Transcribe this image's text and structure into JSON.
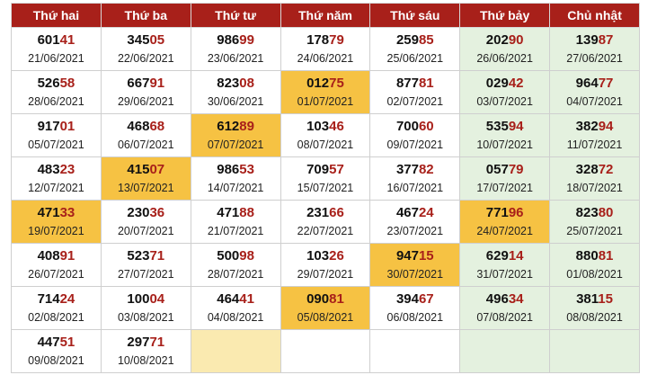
{
  "colors": {
    "header_bg": "#a8201a",
    "header_text": "#ffffff",
    "tail_digits": "#a8201a",
    "highlight": "#f6c243",
    "weekend": "#e4f1df",
    "empty_highlight": "#faeab0"
  },
  "headers": [
    "Thứ hai",
    "Thứ ba",
    "Thứ tư",
    "Thứ năm",
    "Thứ sáu",
    "Thứ bảy",
    "Chủ nhật"
  ],
  "rows": [
    [
      {
        "head": "601",
        "tail": "41",
        "date": "21/06/2021",
        "highlight": false
      },
      {
        "head": "345",
        "tail": "05",
        "date": "22/06/2021",
        "highlight": false
      },
      {
        "head": "986",
        "tail": "99",
        "date": "23/06/2021",
        "highlight": false
      },
      {
        "head": "178",
        "tail": "79",
        "date": "24/06/2021",
        "highlight": false
      },
      {
        "head": "259",
        "tail": "85",
        "date": "25/06/2021",
        "highlight": false
      },
      {
        "head": "202",
        "tail": "90",
        "date": "26/06/2021",
        "highlight": false
      },
      {
        "head": "139",
        "tail": "87",
        "date": "27/06/2021",
        "highlight": false
      }
    ],
    [
      {
        "head": "526",
        "tail": "58",
        "date": "28/06/2021",
        "highlight": false
      },
      {
        "head": "667",
        "tail": "91",
        "date": "29/06/2021",
        "highlight": false
      },
      {
        "head": "823",
        "tail": "08",
        "date": "30/06/2021",
        "highlight": false
      },
      {
        "head": "012",
        "tail": "75",
        "date": "01/07/2021",
        "highlight": true
      },
      {
        "head": "877",
        "tail": "81",
        "date": "02/07/2021",
        "highlight": false
      },
      {
        "head": "029",
        "tail": "42",
        "date": "03/07/2021",
        "highlight": false
      },
      {
        "head": "964",
        "tail": "77",
        "date": "04/07/2021",
        "highlight": false
      }
    ],
    [
      {
        "head": "917",
        "tail": "01",
        "date": "05/07/2021",
        "highlight": false
      },
      {
        "head": "468",
        "tail": "68",
        "date": "06/07/2021",
        "highlight": false
      },
      {
        "head": "612",
        "tail": "89",
        "date": "07/07/2021",
        "highlight": true
      },
      {
        "head": "103",
        "tail": "46",
        "date": "08/07/2021",
        "highlight": false
      },
      {
        "head": "700",
        "tail": "60",
        "date": "09/07/2021",
        "highlight": false
      },
      {
        "head": "535",
        "tail": "94",
        "date": "10/07/2021",
        "highlight": false
      },
      {
        "head": "382",
        "tail": "94",
        "date": "11/07/2021",
        "highlight": false
      }
    ],
    [
      {
        "head": "483",
        "tail": "23",
        "date": "12/07/2021",
        "highlight": false
      },
      {
        "head": "415",
        "tail": "07",
        "date": "13/07/2021",
        "highlight": true
      },
      {
        "head": "986",
        "tail": "53",
        "date": "14/07/2021",
        "highlight": false
      },
      {
        "head": "709",
        "tail": "57",
        "date": "15/07/2021",
        "highlight": false
      },
      {
        "head": "377",
        "tail": "82",
        "date": "16/07/2021",
        "highlight": false
      },
      {
        "head": "057",
        "tail": "79",
        "date": "17/07/2021",
        "highlight": false
      },
      {
        "head": "328",
        "tail": "72",
        "date": "18/07/2021",
        "highlight": false
      }
    ],
    [
      {
        "head": "471",
        "tail": "33",
        "date": "19/07/2021",
        "highlight": true
      },
      {
        "head": "230",
        "tail": "36",
        "date": "20/07/2021",
        "highlight": false
      },
      {
        "head": "471",
        "tail": "88",
        "date": "21/07/2021",
        "highlight": false
      },
      {
        "head": "231",
        "tail": "66",
        "date": "22/07/2021",
        "highlight": false
      },
      {
        "head": "467",
        "tail": "24",
        "date": "23/07/2021",
        "highlight": false
      },
      {
        "head": "771",
        "tail": "96",
        "date": "24/07/2021",
        "highlight": true
      },
      {
        "head": "823",
        "tail": "80",
        "date": "25/07/2021",
        "highlight": false
      }
    ],
    [
      {
        "head": "408",
        "tail": "91",
        "date": "26/07/2021",
        "highlight": false
      },
      {
        "head": "523",
        "tail": "71",
        "date": "27/07/2021",
        "highlight": false
      },
      {
        "head": "500",
        "tail": "98",
        "date": "28/07/2021",
        "highlight": false
      },
      {
        "head": "103",
        "tail": "26",
        "date": "29/07/2021",
        "highlight": false
      },
      {
        "head": "947",
        "tail": "15",
        "date": "30/07/2021",
        "highlight": true
      },
      {
        "head": "629",
        "tail": "14",
        "date": "31/07/2021",
        "highlight": false
      },
      {
        "head": "880",
        "tail": "81",
        "date": "01/08/2021",
        "highlight": false
      }
    ],
    [
      {
        "head": "714",
        "tail": "24",
        "date": "02/08/2021",
        "highlight": false
      },
      {
        "head": "100",
        "tail": "04",
        "date": "03/08/2021",
        "highlight": false
      },
      {
        "head": "464",
        "tail": "41",
        "date": "04/08/2021",
        "highlight": false
      },
      {
        "head": "090",
        "tail": "81",
        "date": "05/08/2021",
        "highlight": true
      },
      {
        "head": "394",
        "tail": "67",
        "date": "06/08/2021",
        "highlight": false
      },
      {
        "head": "496",
        "tail": "34",
        "date": "07/08/2021",
        "highlight": false
      },
      {
        "head": "381",
        "tail": "15",
        "date": "08/08/2021",
        "highlight": false
      }
    ],
    [
      {
        "head": "447",
        "tail": "51",
        "date": "09/08/2021",
        "highlight": false
      },
      {
        "head": "297",
        "tail": "71",
        "date": "10/08/2021",
        "highlight": false
      },
      {
        "empty": true,
        "highlight": true
      },
      {
        "empty": true,
        "highlight": false
      },
      {
        "empty": true,
        "highlight": false
      },
      {
        "empty": true,
        "highlight": false
      },
      {
        "empty": true,
        "highlight": false
      }
    ]
  ]
}
